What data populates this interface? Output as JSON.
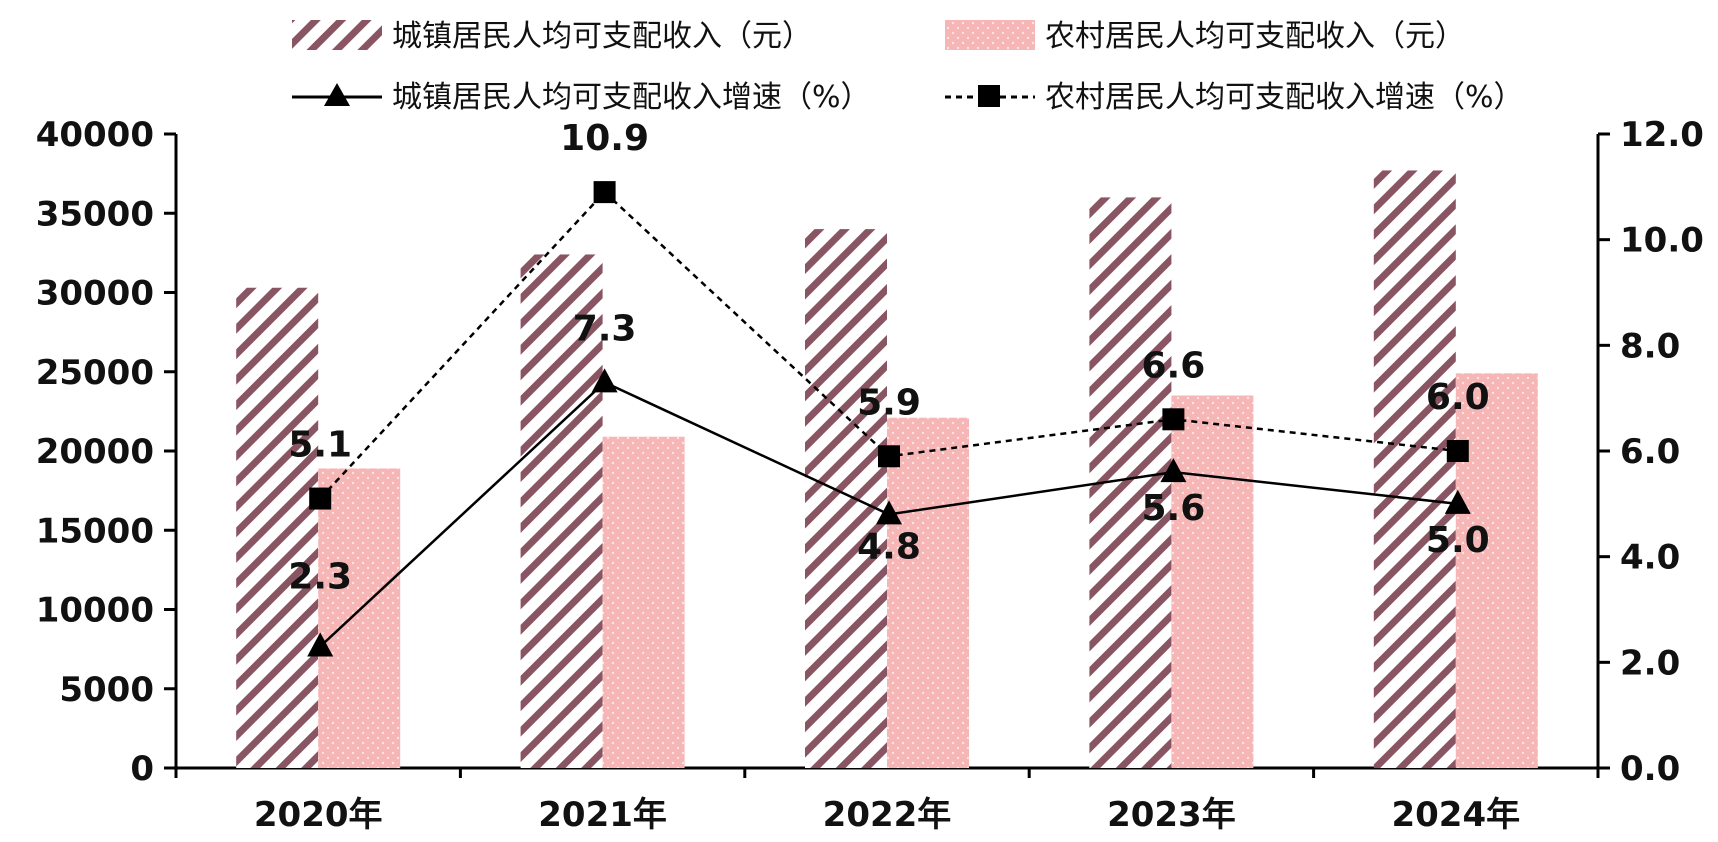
{
  "chart_data": {
    "type": "bar",
    "categories": [
      "2020年",
      "2021年",
      "2022年",
      "2023年",
      "2024年"
    ],
    "series": [
      {
        "name": "城镇居民人均可支配收入（元）",
        "kind": "bar",
        "axis": "left",
        "values": [
          30300,
          32400,
          34000,
          36000,
          37700
        ]
      },
      {
        "name": "农村居民人均可支配收入（元）",
        "kind": "bar",
        "axis": "left",
        "values": [
          18900,
          20900,
          22100,
          23500,
          24900
        ]
      },
      {
        "name": "城镇居民人均可支配收入增速（%）",
        "kind": "line",
        "axis": "right",
        "values": [
          2.3,
          7.3,
          4.8,
          5.6,
          5.0
        ],
        "labels": [
          "2.3",
          "7.3",
          "4.8",
          "5.6",
          "5.0"
        ]
      },
      {
        "name": "农村居民人均可支配收入增速（%）",
        "kind": "line-dashed",
        "axis": "right",
        "values": [
          5.1,
          10.9,
          5.9,
          6.6,
          6.0
        ],
        "labels": [
          "5.1",
          "10.9",
          "5.9",
          "6.6",
          "6.0"
        ]
      }
    ],
    "y_left": {
      "range": [
        0,
        40000
      ],
      "ticks": [
        "0",
        "5000",
        "10000",
        "15000",
        "20000",
        "25000",
        "30000",
        "35000",
        "40000"
      ]
    },
    "y_right": {
      "range": [
        0,
        12
      ],
      "ticks": [
        "0.0",
        "2.0",
        "4.0",
        "6.0",
        "8.0",
        "10.0",
        "12.0"
      ]
    },
    "grid": false,
    "legend_position": "top",
    "colors": {
      "urban_bar_stripe": "#8a5563",
      "rural_bar_fill": "#f6b6b6",
      "line": "#000000"
    }
  }
}
